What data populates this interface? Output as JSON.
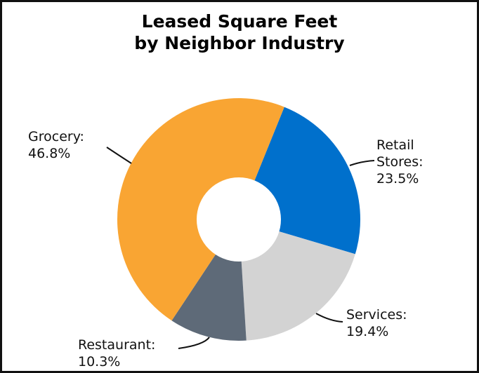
{
  "chart_data": {
    "type": "pie",
    "variant": "donut",
    "title": "Leased Square Feet by Neighbor Industry",
    "title_lines": [
      "Leased Square Feet",
      "by Neighbor Industry"
    ],
    "categories": [
      "Retail Stores",
      "Services",
      "Restaurant",
      "Grocery"
    ],
    "values": [
      23.5,
      19.4,
      10.3,
      46.8
    ],
    "unit": "%",
    "colors": [
      "#0070CC",
      "#D3D3D3",
      "#5E6A78",
      "#F9A533"
    ],
    "labels": [
      {
        "name": "Retail Stores",
        "lines": [
          "Retail",
          "Stores:",
          "23.5%"
        ]
      },
      {
        "name": "Services",
        "lines": [
          "Services:",
          "19.4%"
        ]
      },
      {
        "name": "Restaurant",
        "lines": [
          "Restaurant:",
          "10.3%"
        ]
      },
      {
        "name": "Grocery",
        "lines": [
          "Grocery:",
          "46.8%"
        ]
      }
    ],
    "legend": "none",
    "start_angle_deg": 22,
    "direction": "clockwise"
  }
}
